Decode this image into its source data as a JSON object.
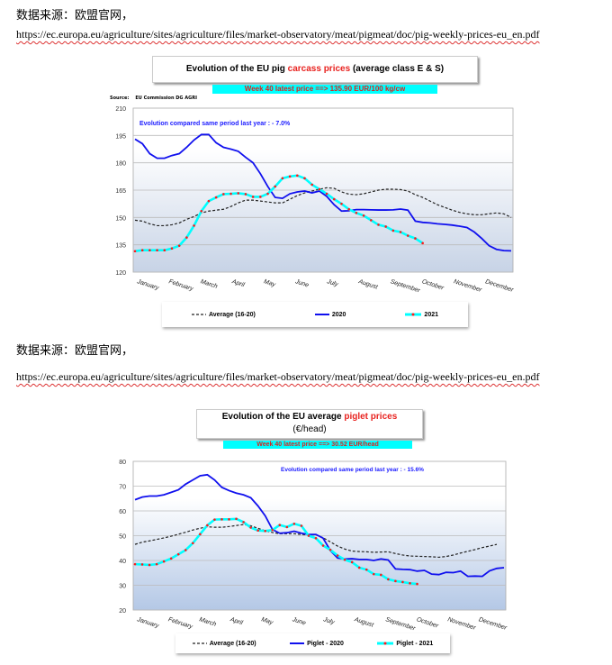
{
  "source_label": "数据来源：欧盟官网，",
  "source_url": "https://ec.europa.eu/agriculture/sites/agriculture/files/market-observatory/meat/pigmeat/doc/pig-weekly-prices-eu_en.pdf",
  "colors": {
    "average": "#222222",
    "y2020": "#1010ee",
    "y2021_line": "#00ffff",
    "y2021_marker": "#ff1a1a",
    "band": "#00ffff"
  },
  "chart_data": [
    {
      "type": "line",
      "title_prefix": "Evolution of the EU pig ",
      "title_highlight": "carcass prices",
      "title_suffix": " (average class E & S)",
      "latest_price": "Week 40 latest price ==>  135.90 EUR/100 kg/cw",
      "source_label": "Source:",
      "source_value": "EU Commission DG AGRI",
      "annotation": "Evolution compared same period last year   : - 7.0%",
      "ylim": [
        120,
        210
      ],
      "yticks": [
        "120",
        "135",
        "150",
        "165",
        "180",
        "195",
        "210"
      ],
      "months": [
        "January",
        "February",
        "March",
        "April",
        "May",
        "June",
        "July",
        "August",
        "September",
        "October",
        "November",
        "December"
      ],
      "grid": true,
      "legend_position": "bottom",
      "series": [
        {
          "name": "Average (16-20)",
          "style": "dashed",
          "values": [
            148.5,
            148,
            146.5,
            145.5,
            145.5,
            146,
            147,
            149,
            150.5,
            152.5,
            153.5,
            154,
            154.5,
            156,
            158,
            159.5,
            159.5,
            159,
            158.5,
            158,
            158,
            160,
            162,
            163.5,
            164.5,
            165.5,
            166.3,
            166,
            164,
            162.8,
            162.5,
            163,
            164,
            165,
            165.5,
            165.5,
            165.3,
            164.5,
            162.5,
            161,
            159,
            157,
            155.5,
            154,
            152.8,
            152,
            151.5,
            151.5,
            152,
            152.5,
            152,
            150
          ]
        },
        {
          "name": "2020",
          "style": "solid",
          "values": [
            193,
            190.5,
            185,
            182.5,
            182.5,
            184,
            185,
            188.5,
            192.5,
            195.5,
            195.5,
            191,
            188.5,
            187.5,
            186.3,
            183,
            180,
            174,
            167,
            161,
            160.5,
            163,
            164,
            164.5,
            163.5,
            164.5,
            161.5,
            157,
            153.5,
            153.7,
            154.3,
            154.3,
            154.2,
            154.1,
            154.1,
            154.2,
            154.6,
            154,
            148,
            147.3,
            147,
            146.5,
            146.2,
            145.8,
            145.2,
            144.5,
            142,
            138.5,
            134.5,
            132.5,
            131.8,
            131.7
          ]
        },
        {
          "name": "2021",
          "style": "marker",
          "values": [
            131.5,
            132,
            132,
            132,
            132,
            133,
            134.5,
            139,
            145.5,
            153.5,
            159,
            161,
            162.8,
            163,
            163.3,
            162.8,
            161.3,
            161.3,
            163,
            167,
            171.5,
            172.5,
            173,
            171.5,
            168,
            165.5,
            163,
            160,
            157.5,
            154.5,
            152.5,
            151,
            148.5,
            146,
            145,
            142.8,
            142,
            140,
            138.5,
            135.9
          ]
        }
      ]
    },
    {
      "type": "line",
      "title_prefix": "Evolution of the EU average ",
      "title_highlight": "piglet prices",
      "title_line2": "(€/head)",
      "latest_price": "Week 40 latest price ==>  30.52 EUR/head",
      "annotation": "Evolution compared same period last year   : - 15.6%",
      "ylim": [
        20,
        80
      ],
      "yticks": [
        "20",
        "30",
        "40",
        "50",
        "60",
        "70",
        "80"
      ],
      "months": [
        "January",
        "February",
        "March",
        "April",
        "May",
        "June",
        "July",
        "August",
        "September",
        "October",
        "November",
        "December"
      ],
      "grid": true,
      "legend_position": "bottom",
      "series": [
        {
          "name": "Average (16-20)",
          "style": "dashed",
          "values": [
            46.5,
            47.4,
            47.9,
            48.5,
            49.1,
            49.8,
            50.6,
            51.4,
            52.3,
            53,
            53.6,
            53.4,
            53.4,
            53.7,
            54.1,
            54.5,
            54,
            53,
            52,
            51.3,
            50.8,
            50.8,
            50.8,
            50.5,
            50.3,
            50.4,
            49.2,
            47.5,
            45.8,
            44.6,
            43.8,
            43.6,
            43.5,
            43.3,
            43.4,
            43.5,
            42.8,
            42.2,
            41.8,
            41.7,
            41.6,
            41.5,
            41.3,
            41.6,
            42.2,
            43,
            43.7,
            44.4,
            45.2,
            45.8,
            46.5
          ]
        },
        {
          "name": "Piglet - 2020",
          "style": "solid",
          "values": [
            64.5,
            65.6,
            66,
            66,
            66.5,
            67.5,
            68.5,
            70.8,
            72.5,
            74.2,
            74.6,
            72.5,
            69.5,
            68.2,
            67.2,
            66.5,
            65.3,
            62,
            58,
            52.5,
            51,
            51.2,
            51.8,
            51,
            50.5,
            50.5,
            49,
            44,
            41,
            40.6,
            40.7,
            40.4,
            40.4,
            40,
            40.6,
            40.2,
            36.6,
            36.4,
            36.3,
            35.7,
            36,
            34.5,
            34.3,
            35.2,
            35.1,
            35.7,
            33.6,
            33.7,
            33.6,
            35.8,
            36.8,
            37.1
          ]
        },
        {
          "name": "Piglet - 2021",
          "style": "marker",
          "values": [
            38.5,
            38.4,
            38.2,
            38.5,
            39.6,
            40.8,
            42.5,
            44.2,
            47,
            50.6,
            54.2,
            56.5,
            56.6,
            56.6,
            56.8,
            55.5,
            53.3,
            52.1,
            51.9,
            52.3,
            54.3,
            53.5,
            54.8,
            54,
            50,
            49,
            46,
            44.3,
            42,
            40.3,
            39.3,
            37.1,
            36.3,
            34.5,
            34.2,
            32.4,
            31.7,
            31.3,
            30.8,
            30.52
          ]
        }
      ]
    }
  ]
}
